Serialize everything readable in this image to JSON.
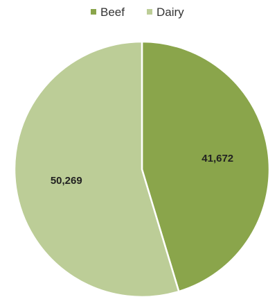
{
  "chart_data": {
    "type": "pie",
    "categories": [
      "Beef",
      "Dairy"
    ],
    "values": [
      41672,
      50269
    ],
    "data_labels": [
      "41,672",
      "50,269"
    ],
    "colors": [
      "#8aa54b",
      "#bccd97"
    ],
    "legend_position": "top-center",
    "start_angle": "12 o'clock, clockwise"
  }
}
